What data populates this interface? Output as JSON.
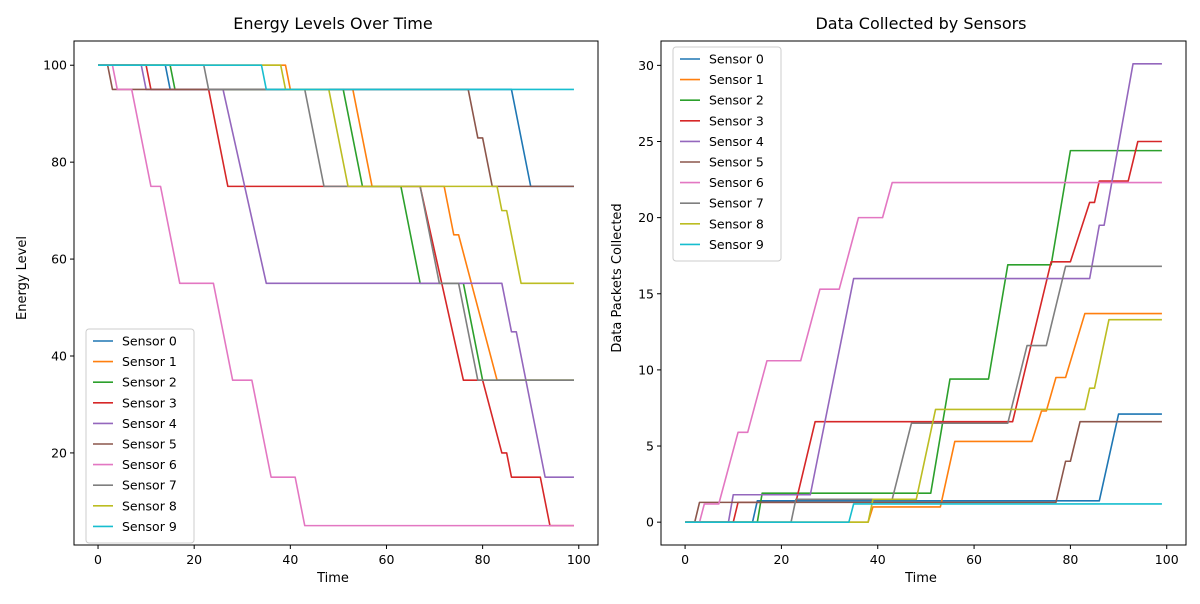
{
  "chart_data": [
    {
      "type": "line",
      "title": "Energy Levels Over Time",
      "xlabel": "Time",
      "ylabel": "Energy Level",
      "xlim": [
        -5,
        104
      ],
      "ylim": [
        1,
        105
      ],
      "xticks": [
        0,
        20,
        40,
        60,
        80,
        100
      ],
      "yticks": [
        20,
        40,
        60,
        80,
        100
      ],
      "legend": "lower-left",
      "grid": false,
      "series": [
        {
          "name": "Sensor 0",
          "color": "#1f77b4",
          "points": [
            [
              0,
              100
            ],
            [
              14,
              100
            ],
            [
              15,
              95
            ],
            [
              86,
              95
            ],
            [
              90,
              75
            ],
            [
              99,
              75
            ]
          ]
        },
        {
          "name": "Sensor 1",
          "color": "#ff7f0e",
          "points": [
            [
              0,
              100
            ],
            [
              39,
              100
            ],
            [
              40,
              95
            ],
            [
              53,
              95
            ],
            [
              57,
              75
            ],
            [
              72,
              75
            ],
            [
              74,
              65
            ],
            [
              75,
              65
            ],
            [
              83,
              35
            ],
            [
              99,
              35
            ]
          ]
        },
        {
          "name": "Sensor 2",
          "color": "#2ca02c",
          "points": [
            [
              0,
              100
            ],
            [
              15,
              100
            ],
            [
              16,
              95
            ],
            [
              51,
              95
            ],
            [
              55,
              75
            ],
            [
              63,
              75
            ],
            [
              67,
              55
            ],
            [
              76,
              55
            ],
            [
              80,
              35
            ],
            [
              99,
              35
            ]
          ]
        },
        {
          "name": "Sensor 3",
          "color": "#d62728",
          "points": [
            [
              0,
              100
            ],
            [
              10,
              100
            ],
            [
              11,
              95
            ],
            [
              23,
              95
            ],
            [
              27,
              75
            ],
            [
              67,
              75
            ],
            [
              76,
              35
            ],
            [
              80,
              35
            ],
            [
              84,
              20
            ],
            [
              85,
              20
            ],
            [
              86,
              15
            ],
            [
              92,
              15
            ],
            [
              94,
              5
            ],
            [
              99,
              5
            ]
          ]
        },
        {
          "name": "Sensor 4",
          "color": "#9467bd",
          "points": [
            [
              0,
              100
            ],
            [
              9,
              100
            ],
            [
              10,
              95
            ],
            [
              26,
              95
            ],
            [
              35,
              55
            ],
            [
              84,
              55
            ],
            [
              86,
              45
            ],
            [
              87,
              45
            ],
            [
              93,
              15
            ],
            [
              99,
              15
            ]
          ]
        },
        {
          "name": "Sensor 5",
          "color": "#8c564b",
          "points": [
            [
              0,
              100
            ],
            [
              2,
              100
            ],
            [
              3,
              95
            ],
            [
              77,
              95
            ],
            [
              79,
              85
            ],
            [
              80,
              85
            ],
            [
              82,
              75
            ],
            [
              99,
              75
            ]
          ]
        },
        {
          "name": "Sensor 6",
          "color": "#e377c2",
          "points": [
            [
              0,
              100
            ],
            [
              3,
              100
            ],
            [
              4,
              95
            ],
            [
              7,
              95
            ],
            [
              11,
              75
            ],
            [
              13,
              75
            ],
            [
              17,
              55
            ],
            [
              24,
              55
            ],
            [
              28,
              35
            ],
            [
              32,
              35
            ],
            [
              36,
              15
            ],
            [
              41,
              15
            ],
            [
              43,
              5
            ],
            [
              99,
              5
            ]
          ]
        },
        {
          "name": "Sensor 7",
          "color": "#7f7f7f",
          "points": [
            [
              0,
              100
            ],
            [
              22,
              100
            ],
            [
              23,
              95
            ],
            [
              43,
              95
            ],
            [
              47,
              75
            ],
            [
              67,
              75
            ],
            [
              71,
              55
            ],
            [
              75,
              55
            ],
            [
              79,
              35
            ],
            [
              99,
              35
            ]
          ]
        },
        {
          "name": "Sensor 8",
          "color": "#bcbd22",
          "points": [
            [
              0,
              100
            ],
            [
              38,
              100
            ],
            [
              39,
              95
            ],
            [
              48,
              95
            ],
            [
              52,
              75
            ],
            [
              83,
              75
            ],
            [
              84,
              70
            ],
            [
              85,
              70
            ],
            [
              88,
              55
            ],
            [
              99,
              55
            ]
          ]
        },
        {
          "name": "Sensor 9",
          "color": "#17becf",
          "points": [
            [
              0,
              100
            ],
            [
              34,
              100
            ],
            [
              35,
              95
            ],
            [
              99,
              95
            ]
          ]
        }
      ]
    },
    {
      "type": "line",
      "title": "Data Collected by Sensors",
      "xlabel": "Time",
      "ylabel": "Data Packets Collected",
      "xlim": [
        -5,
        104
      ],
      "ylim": [
        -1.5,
        31.6
      ],
      "xticks": [
        0,
        20,
        40,
        60,
        80,
        100
      ],
      "yticks": [
        0,
        5,
        10,
        15,
        20,
        25,
        30
      ],
      "legend": "upper-left",
      "grid": false,
      "series": [
        {
          "name": "Sensor 0",
          "color": "#1f77b4",
          "points": [
            [
              0,
              0
            ],
            [
              14,
              0
            ],
            [
              15,
              1.4
            ],
            [
              86,
              1.4
            ],
            [
              90,
              7.1
            ],
            [
              99,
              7.1
            ]
          ]
        },
        {
          "name": "Sensor 1",
          "color": "#ff7f0e",
          "points": [
            [
              0,
              0
            ],
            [
              38,
              0
            ],
            [
              39,
              1.0
            ],
            [
              53,
              1.0
            ],
            [
              56,
              5.3
            ],
            [
              72,
              5.3
            ],
            [
              74,
              7.3
            ],
            [
              75,
              7.3
            ],
            [
              77,
              9.5
            ],
            [
              79,
              9.5
            ],
            [
              83,
              13.7
            ],
            [
              99,
              13.7
            ]
          ]
        },
        {
          "name": "Sensor 2",
          "color": "#2ca02c",
          "points": [
            [
              0,
              0
            ],
            [
              15,
              0
            ],
            [
              16,
              1.9
            ],
            [
              51,
              1.9
            ],
            [
              55,
              9.4
            ],
            [
              63,
              9.4
            ],
            [
              67,
              16.9
            ],
            [
              76,
              16.9
            ],
            [
              80,
              24.4
            ],
            [
              99,
              24.4
            ]
          ]
        },
        {
          "name": "Sensor 3",
          "color": "#d62728",
          "points": [
            [
              0,
              0
            ],
            [
              10,
              0
            ],
            [
              11,
              1.3
            ],
            [
              23,
              1.3
            ],
            [
              27,
              6.6
            ],
            [
              68,
              6.6
            ],
            [
              76,
              17.1
            ],
            [
              80,
              17.1
            ],
            [
              84,
              21.0
            ],
            [
              85,
              21.0
            ],
            [
              86,
              22.4
            ],
            [
              92,
              22.4
            ],
            [
              94,
              25.0
            ],
            [
              99,
              25.0
            ]
          ]
        },
        {
          "name": "Sensor 4",
          "color": "#9467bd",
          "points": [
            [
              0,
              0
            ],
            [
              9,
              0
            ],
            [
              10,
              1.8
            ],
            [
              26,
              1.8
            ],
            [
              35,
              16.0
            ],
            [
              84,
              16.0
            ],
            [
              86,
              19.5
            ],
            [
              87,
              19.5
            ],
            [
              93,
              30.1
            ],
            [
              99,
              30.1
            ]
          ]
        },
        {
          "name": "Sensor 5",
          "color": "#8c564b",
          "points": [
            [
              0,
              0
            ],
            [
              2,
              0
            ],
            [
              3,
              1.3
            ],
            [
              77,
              1.3
            ],
            [
              79,
              4.0
            ],
            [
              80,
              4.0
            ],
            [
              82,
              6.6
            ],
            [
              99,
              6.6
            ]
          ]
        },
        {
          "name": "Sensor 6",
          "color": "#e377c2",
          "points": [
            [
              0,
              0
            ],
            [
              3,
              0
            ],
            [
              4,
              1.2
            ],
            [
              7,
              1.2
            ],
            [
              11,
              5.9
            ],
            [
              13,
              5.9
            ],
            [
              17,
              10.6
            ],
            [
              24,
              10.6
            ],
            [
              28,
              15.3
            ],
            [
              32,
              15.3
            ],
            [
              36,
              20.0
            ],
            [
              41,
              20.0
            ],
            [
              43,
              22.3
            ],
            [
              99,
              22.3
            ]
          ]
        },
        {
          "name": "Sensor 7",
          "color": "#7f7f7f",
          "points": [
            [
              0,
              0
            ],
            [
              22,
              0
            ],
            [
              23,
              1.5
            ],
            [
              43,
              1.5
            ],
            [
              47,
              6.5
            ],
            [
              67,
              6.5
            ],
            [
              71,
              11.6
            ],
            [
              75,
              11.6
            ],
            [
              79,
              16.8
            ],
            [
              99,
              16.8
            ]
          ]
        },
        {
          "name": "Sensor 8",
          "color": "#bcbd22",
          "points": [
            [
              0,
              0
            ],
            [
              38,
              0
            ],
            [
              39,
              1.5
            ],
            [
              48,
              1.5
            ],
            [
              52,
              7.4
            ],
            [
              83,
              7.4
            ],
            [
              84,
              8.8
            ],
            [
              85,
              8.8
            ],
            [
              88,
              13.3
            ],
            [
              99,
              13.3
            ]
          ]
        },
        {
          "name": "Sensor 9",
          "color": "#17becf",
          "points": [
            [
              0,
              0
            ],
            [
              34,
              0
            ],
            [
              35,
              1.2
            ],
            [
              99,
              1.2
            ]
          ]
        }
      ]
    }
  ]
}
